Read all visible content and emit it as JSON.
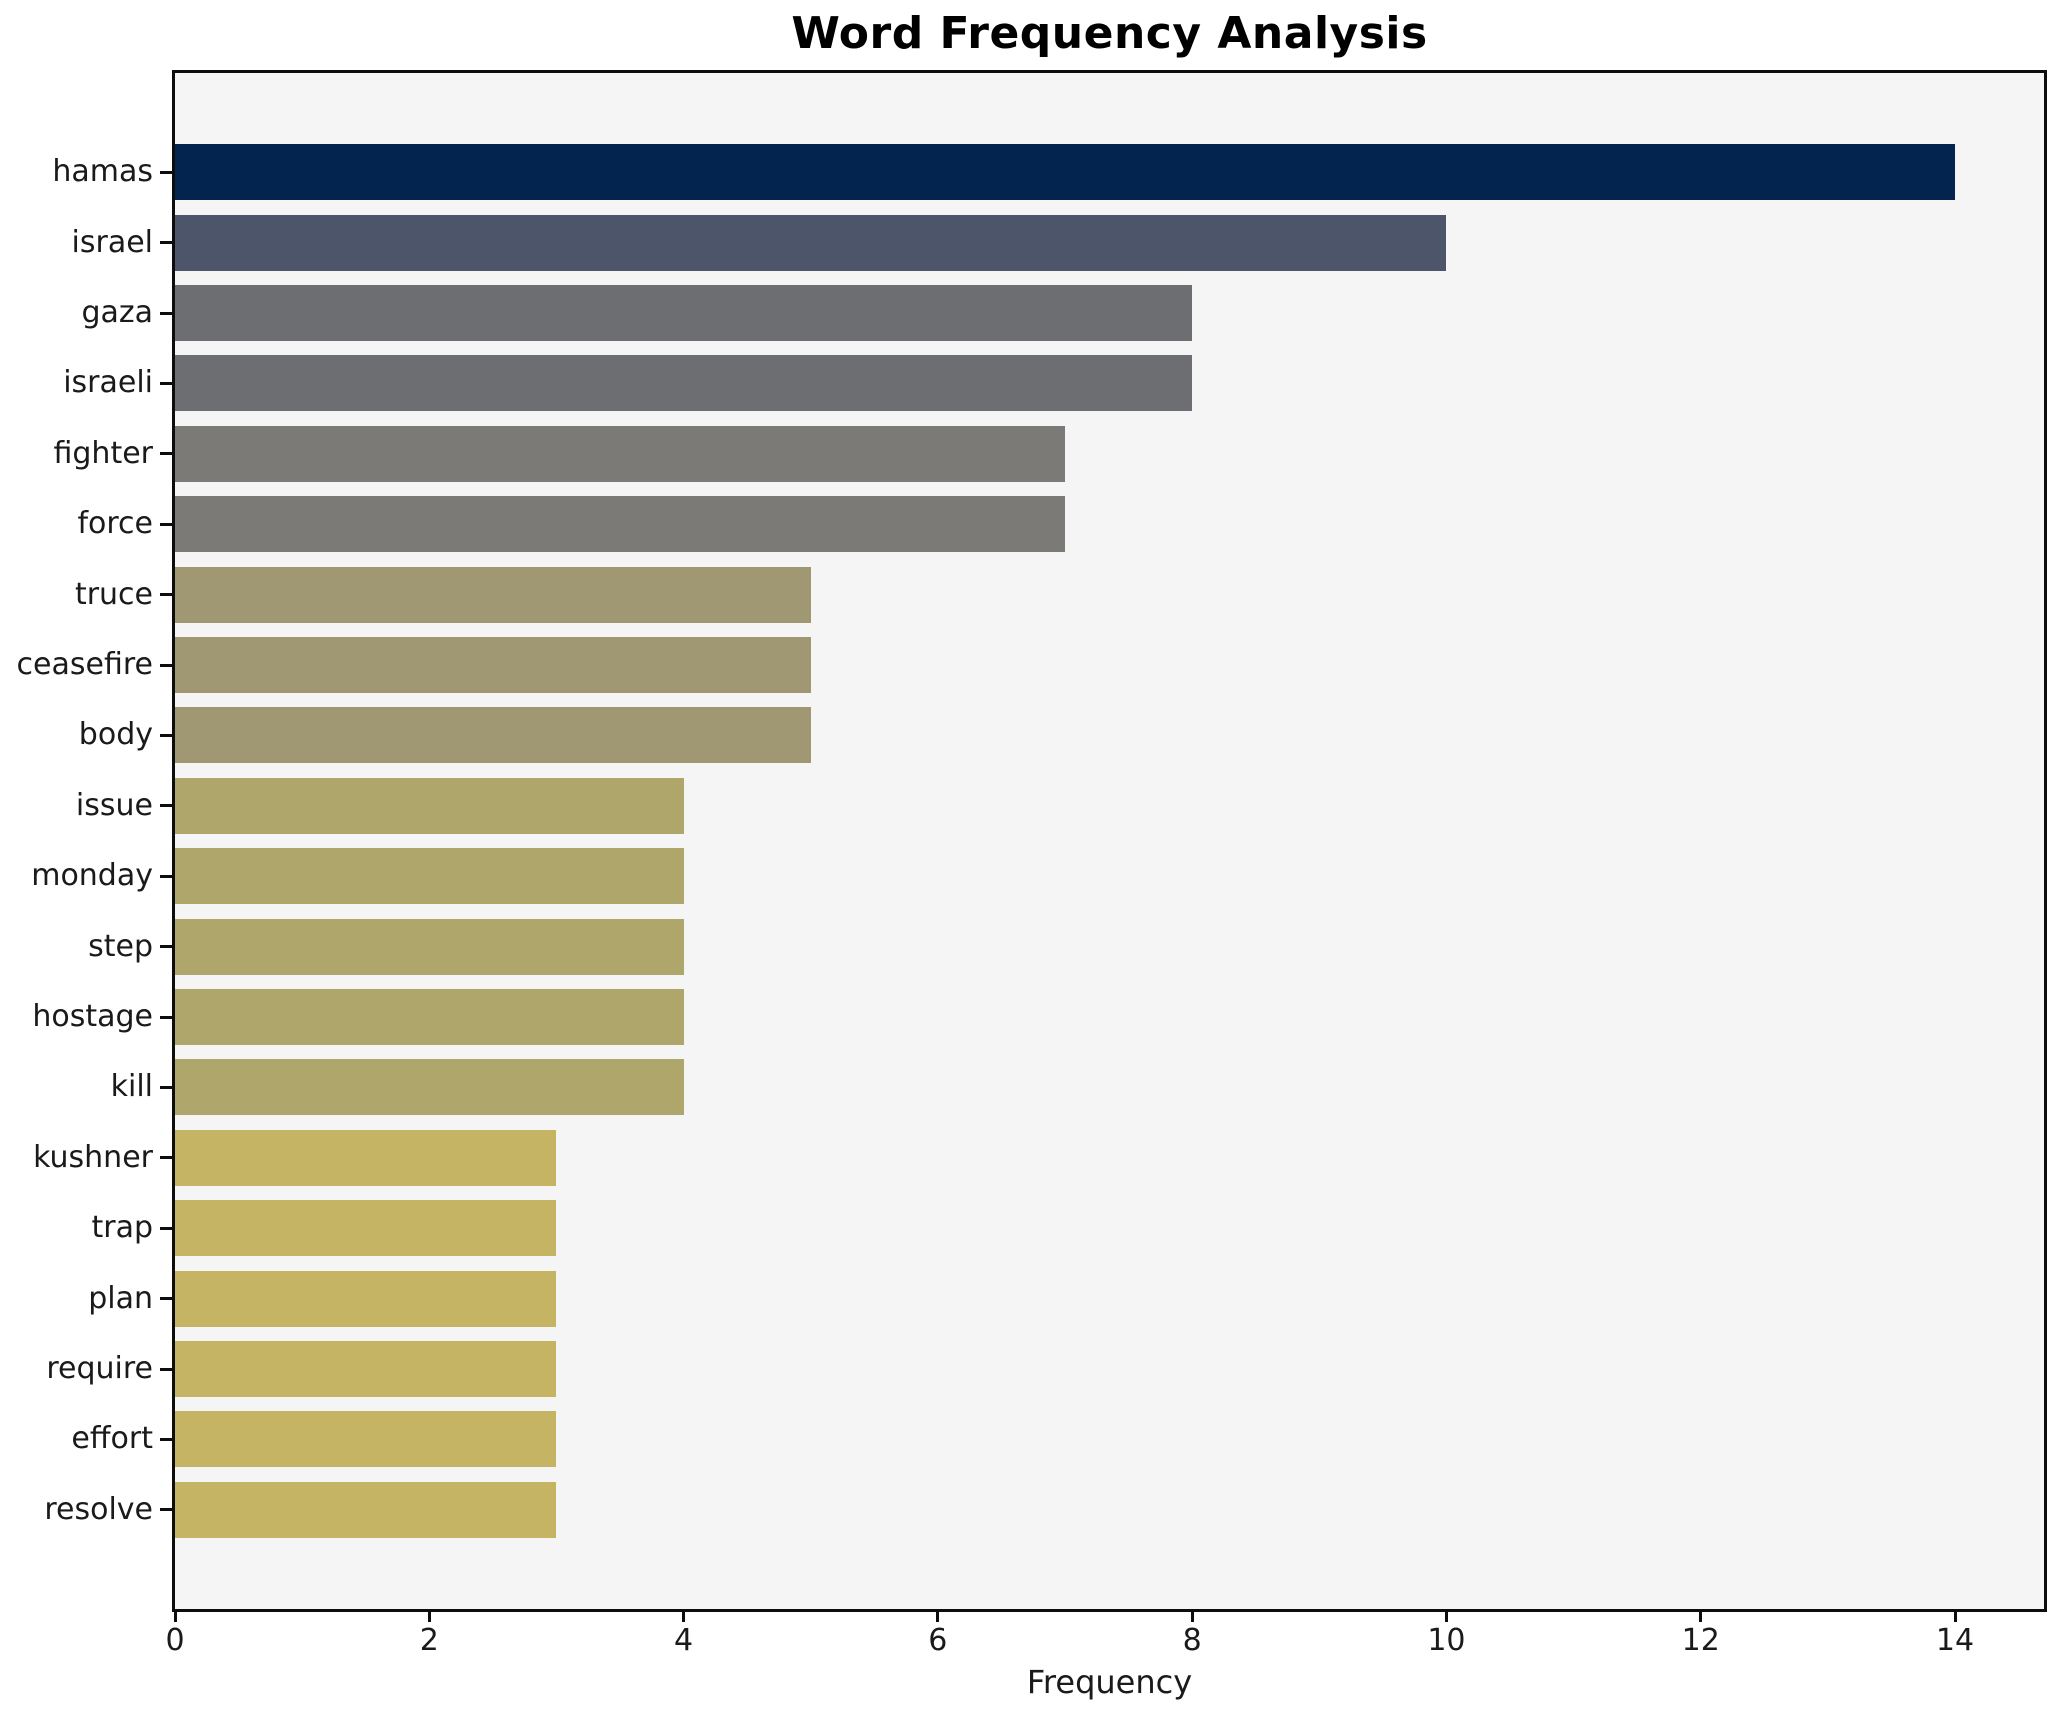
{
  "title": "Word Frequency Analysis",
  "chart_data": {
    "type": "bar",
    "orientation": "horizontal",
    "title": "Word Frequency Analysis",
    "xlabel": "Frequency",
    "ylabel": "",
    "xlim": [
      0,
      14.7
    ],
    "x_ticks": [
      0,
      2,
      4,
      6,
      8,
      10,
      12,
      14
    ],
    "grid": false,
    "legend": "none",
    "plot_background": "#f5f5f5",
    "figure_background": "#ffffff",
    "spine_color": "#0d0d0d",
    "categories": [
      "hamas",
      "israel",
      "gaza",
      "israeli",
      "fighter",
      "force",
      "truce",
      "ceasefire",
      "body",
      "issue",
      "monday",
      "step",
      "hostage",
      "kill",
      "kushner",
      "trap",
      "plan",
      "require",
      "effort",
      "resolve"
    ],
    "values": [
      14,
      10,
      8,
      8,
      7,
      7,
      5,
      5,
      5,
      4,
      4,
      4,
      4,
      4,
      3,
      3,
      3,
      3,
      3,
      3
    ],
    "bar_colors": [
      "#02244F",
      "#4C5569",
      "#6C6E72",
      "#6C6E72",
      "#7B7A76",
      "#7B7A76",
      "#A09873",
      "#A09873",
      "#A09873",
      "#AFA66C",
      "#AFA66C",
      "#AFA66C",
      "#AFA66C",
      "#AFA66C",
      "#C4B464",
      "#C4B464",
      "#C4B464",
      "#C4B464",
      "#C4B464",
      "#C4B464"
    ]
  }
}
